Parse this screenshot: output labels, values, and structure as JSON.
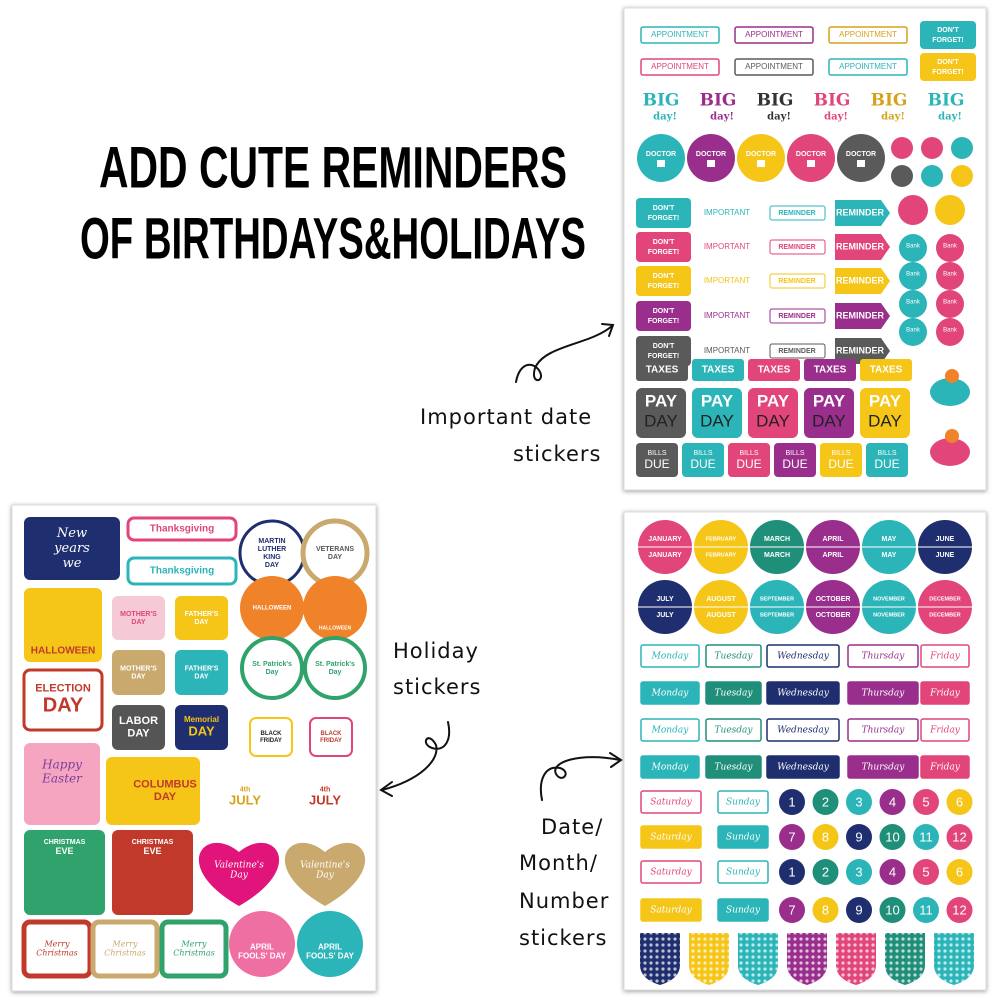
{
  "headline": {
    "line1": "ADD CUTE REMINDERS",
    "line2": "OF BIRTHDAYS&HOLIDAYS"
  },
  "captions": {
    "important": [
      "Important date",
      "stickers"
    ],
    "holiday": [
      "Holiday",
      "stickers"
    ],
    "dates": [
      "Date/",
      "Month/",
      "Number",
      "stickers"
    ]
  },
  "important_sheet": {
    "appointment": "APPOINTMENT",
    "dont_forget": [
      "DON'T",
      "FORGET!"
    ],
    "big": "BIG",
    "day": "day!",
    "doctor": "DOCTOR",
    "important": "IMPORTANT",
    "reminder": "REMINDER",
    "bank": "Bank",
    "taxes": "TAXES",
    "pay": "PAY",
    "pay_day": "DAY",
    "bills": "BILLS",
    "due": "DUE"
  },
  "holiday_sheet": {
    "stickers": [
      [
        "New",
        "years",
        "we"
      ],
      [
        "Thanksgiving"
      ],
      [
        "Thanksgiving"
      ],
      [
        "MARTIN",
        "LUTHER",
        "KING",
        "DAY"
      ],
      [
        "VETERANS",
        "DAY"
      ],
      [
        "HALLOWEEN"
      ],
      [
        "MOTHER'S",
        "DAY"
      ],
      [
        "FATHER'S",
        "DAY"
      ],
      [
        "HALLOWEEN"
      ],
      [
        "HALLOWEEN"
      ],
      [
        "MOTHER'S",
        "DAY"
      ],
      [
        "FATHER'S",
        "DAY"
      ],
      [
        "St. Patrick's",
        "Day"
      ],
      [
        "St. Patrick's",
        "Day"
      ],
      [
        "ELECTION",
        "DAY"
      ],
      [
        "LABOR",
        "DAY"
      ],
      [
        "Memorial",
        "DAY"
      ],
      [
        "BLACK",
        "FRIDAY"
      ],
      [
        "BLACK",
        "FRIDAY"
      ],
      [
        "Happy",
        "Easter"
      ],
      [
        "COLUMBUS",
        "DAY"
      ],
      [
        "4th",
        "JULY"
      ],
      [
        "4th",
        "JULY"
      ],
      [
        "CHRISTMAS",
        "EVE"
      ],
      [
        "CHRISTMAS",
        "EVE"
      ],
      [
        "Valentine's",
        "Day"
      ],
      [
        "Valentine's",
        "Day"
      ],
      [
        "Merry",
        "Christmas"
      ],
      [
        "Merry",
        "Christmas"
      ],
      [
        "Merry",
        "Christmas"
      ],
      [
        "APRIL",
        "FOOLS' DAY"
      ],
      [
        "APRIL",
        "FOOLS' DAY"
      ]
    ]
  },
  "date_sheet": {
    "months": [
      "JANUARY",
      "FEBRUARY",
      "MARCH",
      "APRIL",
      "MAY",
      "JUNE",
      "JULY",
      "AUGUST",
      "SEPTEMBER",
      "OCTOBER",
      "NOVEMBER",
      "DECEMBER"
    ],
    "weekdays": [
      "Monday",
      "Tuesday",
      "Wednesday",
      "Thursday",
      "Friday"
    ],
    "weekend": [
      "Saturday",
      "Sunday"
    ],
    "numbers": [
      1,
      2,
      3,
      4,
      5,
      6,
      7,
      8,
      9,
      10,
      11,
      12
    ]
  }
}
